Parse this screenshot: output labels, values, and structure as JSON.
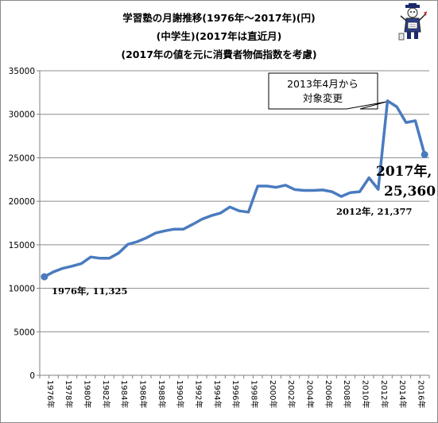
{
  "chart_data": {
    "type": "line",
    "title_lines": [
      "学習塾の月謝推移(1976年～2017年)(円)",
      "(中学生)(2017年は直近月)",
      "(2017年の値を元に消費者物価指数を考慮)"
    ],
    "xlabel": "",
    "ylabel": "",
    "ylim": [
      0,
      35000
    ],
    "yticks": [
      0,
      5000,
      10000,
      15000,
      20000,
      25000,
      30000,
      35000
    ],
    "ytick_labels": [
      "0",
      "5000",
      "10000",
      "15000",
      "20000",
      "25000",
      "30000",
      "35000"
    ],
    "x": [
      1976,
      1977,
      1978,
      1979,
      1980,
      1981,
      1982,
      1983,
      1984,
      1985,
      1986,
      1987,
      1988,
      1989,
      1990,
      1991,
      1992,
      1993,
      1994,
      1995,
      1996,
      1997,
      1998,
      1999,
      2000,
      2001,
      2002,
      2003,
      2004,
      2005,
      2006,
      2007,
      2008,
      2009,
      2010,
      2011,
      2012,
      2013,
      2014,
      2015,
      2016,
      2017
    ],
    "x_tick_labels": [
      "1976年",
      "1978年",
      "1980年",
      "1982年",
      "1984年",
      "1986年",
      "1988年",
      "1990年",
      "1992年",
      "1994年",
      "1996年",
      "1998年",
      "2000年",
      "2002年",
      "2004年",
      "2006年",
      "2008年",
      "2010年",
      "2012年",
      "2014年",
      "2016年"
    ],
    "series": [
      {
        "values": [
          11325,
          11900,
          12300,
          12550,
          12850,
          13600,
          13450,
          13450,
          14050,
          15050,
          15350,
          15800,
          16350,
          16600,
          16800,
          16800,
          17350,
          17950,
          18350,
          18650,
          19350,
          18900,
          18750,
          21750,
          21750,
          21600,
          21850,
          21350,
          21250,
          21250,
          21300,
          21100,
          20550,
          21000,
          21100,
          22700,
          21377,
          31550,
          30850,
          29050,
          29250,
          25360
        ]
      }
    ],
    "grid": true,
    "colors": {
      "line": "#4a7bbf",
      "grid": "#8c8c8c",
      "axis": "#808080",
      "text": "#000000"
    },
    "annotations": [
      {
        "id": "start",
        "text": "1976年, 11,325"
      },
      {
        "id": "2012",
        "text": "2012年, 21,377"
      },
      {
        "id": "end",
        "line1": "2017年,",
        "line2": "25,360"
      },
      {
        "id": "callout",
        "line1": "2013年4月から",
        "line2": "対象変更"
      }
    ]
  }
}
